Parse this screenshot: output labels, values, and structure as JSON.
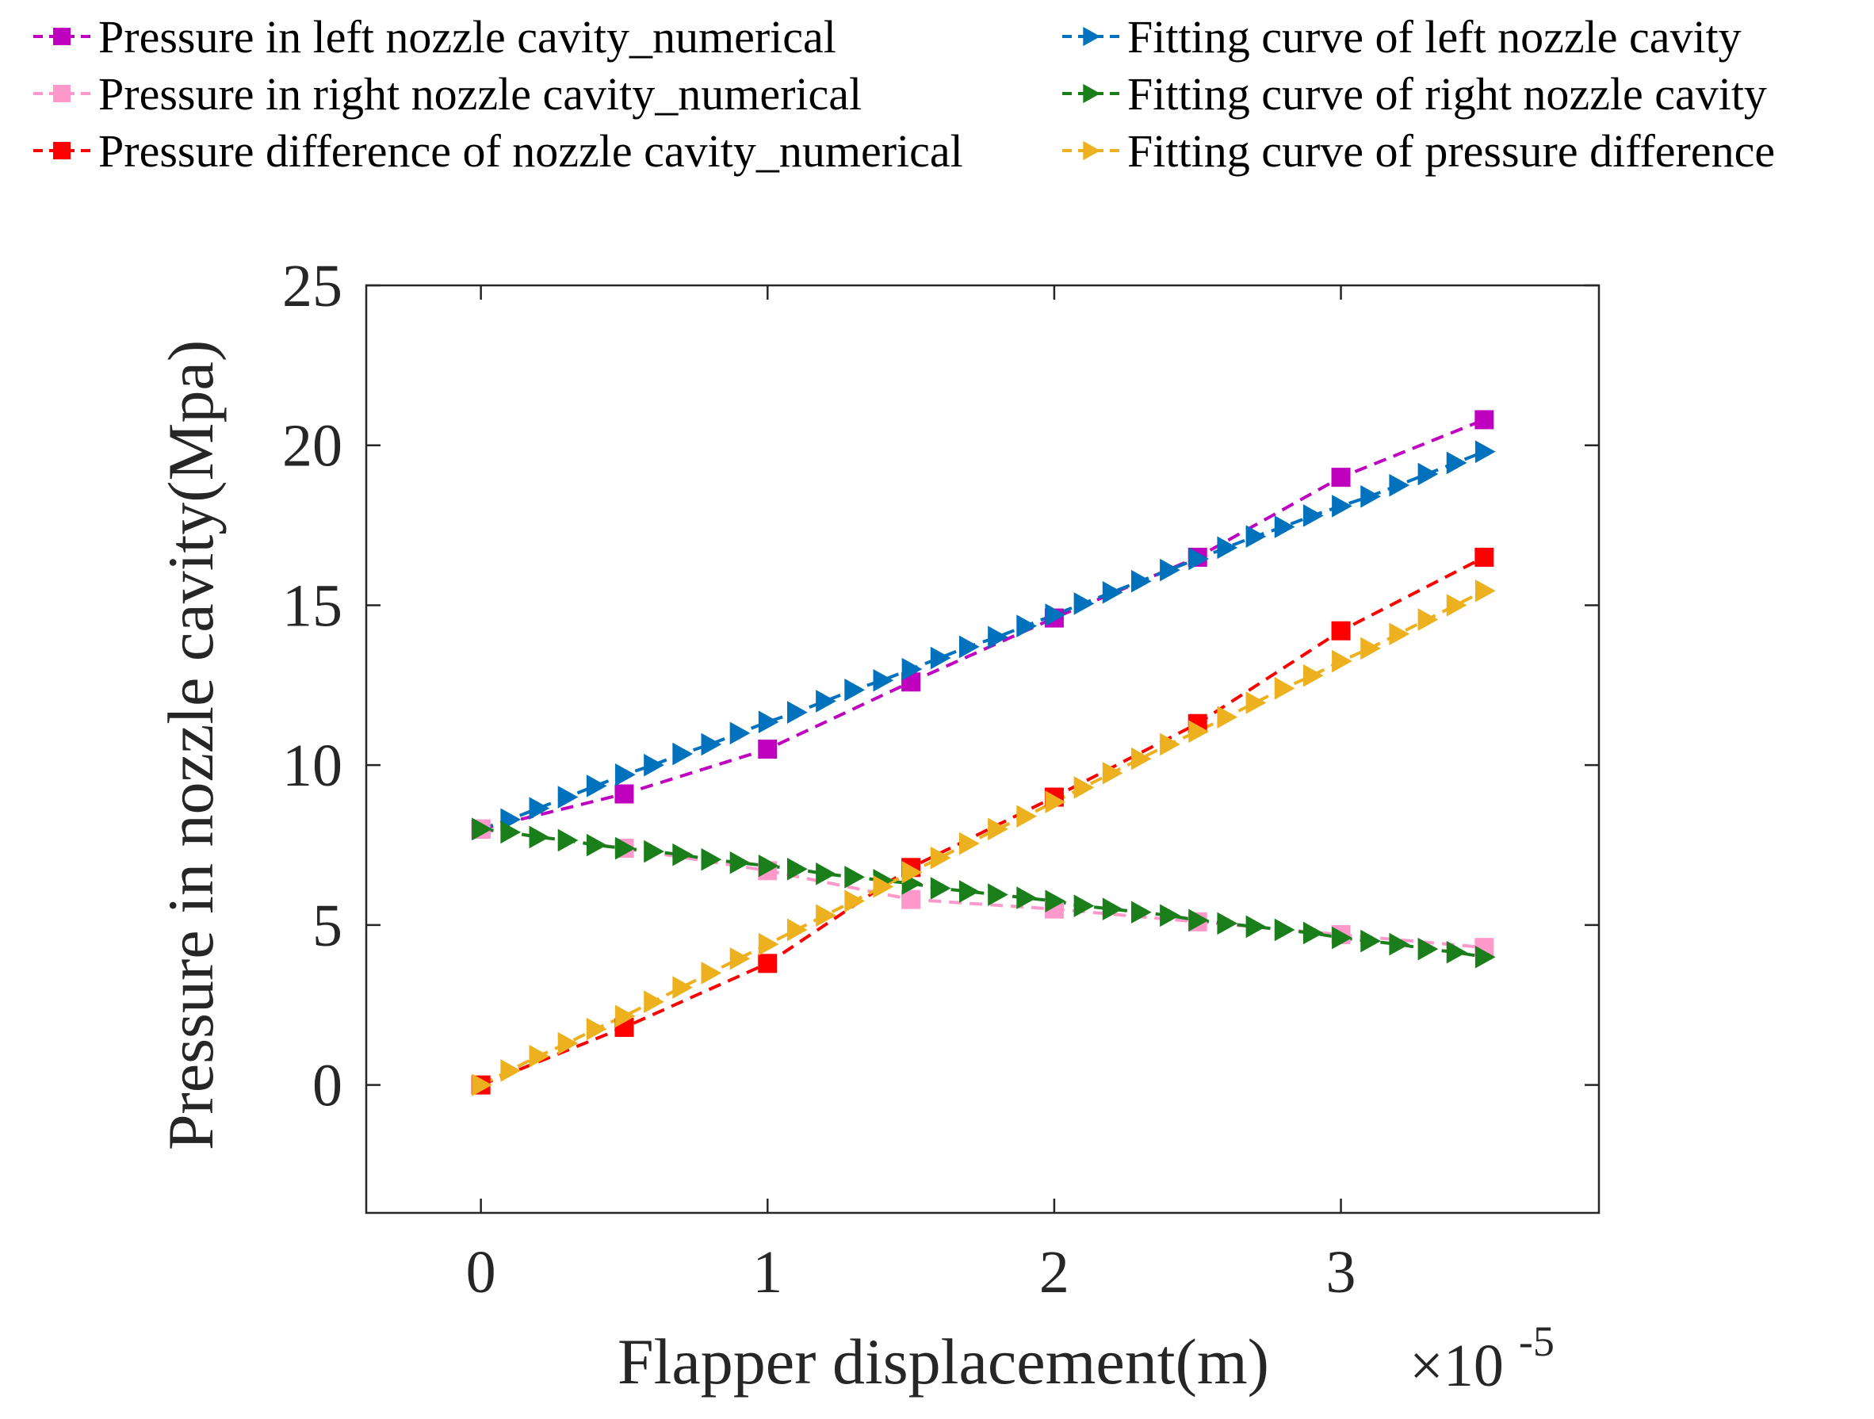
{
  "chart_data": {
    "type": "line",
    "xlabel": "Flapper displacement(m)",
    "ylabel": "Pressure in nozzle cavity(Mpa)",
    "x_exponent_label": "×10",
    "x_exponent_power": "-5",
    "xlim": [
      -0.4,
      3.9
    ],
    "ylim": [
      -4,
      25
    ],
    "xticks": [
      0,
      1,
      2,
      3
    ],
    "xtick_labels": [
      "0",
      "1",
      "2",
      "3"
    ],
    "yticks": [
      0,
      5,
      10,
      15,
      20,
      25
    ],
    "ytick_labels": [
      "0",
      "5",
      "10",
      "15",
      "20",
      "25"
    ],
    "legend_position": "top (above plot, two columns)",
    "series": [
      {
        "name": "Pressure in left nozzle cavity_numerical",
        "color": "#bf00bf",
        "marker": "square",
        "x": [
          0,
          0.5,
          1,
          1.5,
          2,
          2.5,
          3,
          3.5
        ],
        "values": [
          8.0,
          9.1,
          10.5,
          12.6,
          14.6,
          16.5,
          19.0,
          20.8
        ]
      },
      {
        "name": "Pressure in right nozzle cavity_numerical",
        "color": "#ff99cc",
        "marker": "square",
        "x": [
          0,
          0.5,
          1,
          1.5,
          2,
          2.5,
          3,
          3.5
        ],
        "values": [
          8.0,
          7.4,
          6.7,
          5.8,
          5.5,
          5.1,
          4.7,
          4.3
        ]
      },
      {
        "name": "Pressure difference of nozzle cavity_numerical",
        "color": "#ff0000",
        "marker": "square",
        "x": [
          0,
          0.5,
          1,
          1.5,
          2,
          2.5,
          3,
          3.5
        ],
        "values": [
          0.0,
          1.8,
          3.8,
          6.8,
          9.0,
          11.3,
          14.2,
          16.5
        ]
      },
      {
        "name": "Fitting curve of left nozzle cavity",
        "color": "#0072bd",
        "marker": "triangle-right",
        "x": [
          0,
          0.1,
          0.2,
          0.3,
          0.4,
          0.5,
          0.6,
          0.7,
          0.8,
          0.9,
          1.0,
          1.1,
          1.2,
          1.3,
          1.4,
          1.5,
          1.6,
          1.7,
          1.8,
          1.9,
          2.0,
          2.1,
          2.2,
          2.3,
          2.4,
          2.5,
          2.6,
          2.7,
          2.8,
          2.9,
          3.0,
          3.1,
          3.2,
          3.3,
          3.4,
          3.5
        ],
        "values": [
          8.0,
          8.3,
          8.65,
          9.0,
          9.35,
          9.7,
          10.0,
          10.35,
          10.65,
          11.0,
          11.35,
          11.65,
          12.0,
          12.35,
          12.65,
          13.0,
          13.35,
          13.7,
          14.0,
          14.35,
          14.7,
          15.05,
          15.4,
          15.75,
          16.1,
          16.45,
          16.8,
          17.15,
          17.45,
          17.8,
          18.1,
          18.4,
          18.75,
          19.1,
          19.45,
          19.8
        ]
      },
      {
        "name": "Fitting curve of right nozzle cavity",
        "color": "#1a7f1a",
        "marker": "triangle-right",
        "x": [
          0,
          0.1,
          0.2,
          0.3,
          0.4,
          0.5,
          0.6,
          0.7,
          0.8,
          0.9,
          1.0,
          1.1,
          1.2,
          1.3,
          1.4,
          1.5,
          1.6,
          1.7,
          1.8,
          1.9,
          2.0,
          2.1,
          2.2,
          2.3,
          2.4,
          2.5,
          2.6,
          2.7,
          2.8,
          2.9,
          3.0,
          3.1,
          3.2,
          3.3,
          3.4,
          3.5
        ],
        "values": [
          8.0,
          7.9,
          7.75,
          7.65,
          7.5,
          7.4,
          7.3,
          7.2,
          7.05,
          6.95,
          6.85,
          6.75,
          6.6,
          6.5,
          6.4,
          6.3,
          6.15,
          6.05,
          5.95,
          5.85,
          5.75,
          5.6,
          5.5,
          5.4,
          5.3,
          5.15,
          5.05,
          4.95,
          4.85,
          4.75,
          4.6,
          4.5,
          4.4,
          4.25,
          4.15,
          4.0
        ]
      },
      {
        "name": "Fitting curve of pressure difference",
        "color": "#edb120",
        "marker": "triangle-right",
        "x": [
          0,
          0.1,
          0.2,
          0.3,
          0.4,
          0.5,
          0.6,
          0.7,
          0.8,
          0.9,
          1.0,
          1.1,
          1.2,
          1.3,
          1.4,
          1.5,
          1.6,
          1.7,
          1.8,
          1.9,
          2.0,
          2.1,
          2.2,
          2.3,
          2.4,
          2.5,
          2.6,
          2.7,
          2.8,
          2.9,
          3.0,
          3.1,
          3.2,
          3.3,
          3.4,
          3.5
        ],
        "values": [
          0.0,
          0.45,
          0.9,
          1.3,
          1.75,
          2.15,
          2.6,
          3.05,
          3.5,
          3.95,
          4.4,
          4.85,
          5.3,
          5.75,
          6.2,
          6.65,
          7.1,
          7.55,
          8.0,
          8.4,
          8.85,
          9.3,
          9.75,
          10.2,
          10.65,
          11.05,
          11.5,
          11.95,
          12.4,
          12.8,
          13.25,
          13.65,
          14.1,
          14.55,
          15.0,
          15.45
        ]
      }
    ]
  }
}
